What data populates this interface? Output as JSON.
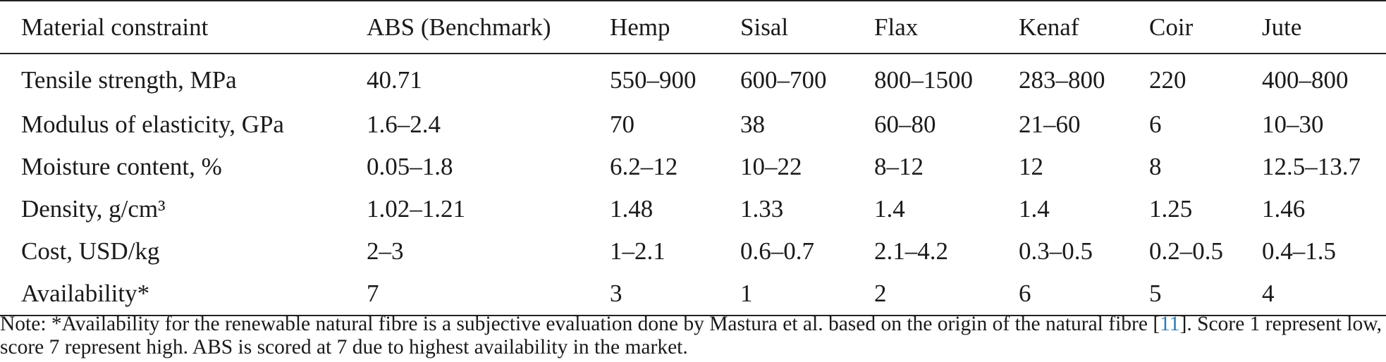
{
  "table": {
    "headers": [
      "Material constraint",
      "ABS (Benchmark)",
      "Hemp",
      "Sisal",
      "Flax",
      "Kenaf",
      "Coir",
      "Jute"
    ],
    "rows": [
      [
        "Tensile strength, MPa",
        "40.71",
        "550–900",
        "600–700",
        "800–1500",
        "283–800",
        "220",
        "400–800"
      ],
      [
        "Modulus of elasticity, GPa",
        "1.6–2.4",
        "70",
        "38",
        "60–80",
        "21–60",
        "6",
        "10–30"
      ],
      [
        "Moisture content, %",
        "0.05–1.8",
        "6.2–12",
        "10–22",
        "8–12",
        "12",
        "8",
        "12.5–13.7"
      ],
      [
        "Density, g/cm³",
        "1.02–1.21",
        "1.48",
        "1.33",
        "1.4",
        "1.4",
        "1.25",
        "1.46"
      ],
      [
        "Cost, USD/kg",
        "2–3",
        "1–2.1",
        "0.6–0.7",
        "2.1–4.2",
        "0.3–0.5",
        "0.2–0.5",
        "0.4–1.5"
      ],
      [
        "Availability*",
        "7",
        "3",
        "1",
        "2",
        "6",
        "5",
        "4"
      ]
    ]
  },
  "note": {
    "before_ref": "Note: *Availability for the renewable natural fibre is a subjective evaluation done by Mastura et al. based on the origin of the natural fibre [",
    "ref": "11",
    "after_ref": "]. Score 1 represent low, score 7 represent high. ABS is scored at 7 due to highest availability in the market.",
    "ref_color": "#2a7ab8"
  }
}
